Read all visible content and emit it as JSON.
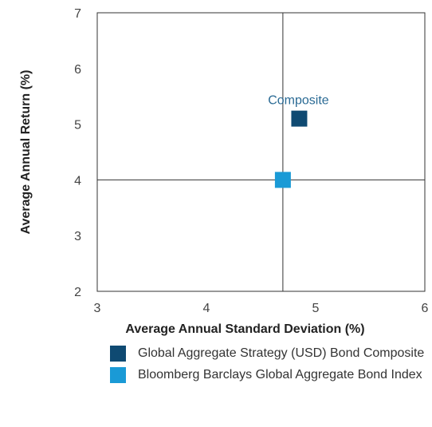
{
  "chart_data": {
    "type": "scatter",
    "xlabel": "Average Annual Standard Deviation (%)",
    "ylabel": "Average Annual Return (%)",
    "xlim": [
      3,
      6
    ],
    "ylim": [
      2,
      7
    ],
    "x_ticks": [
      "3",
      "4",
      "5",
      "6"
    ],
    "y_ticks": [
      "2",
      "3",
      "4",
      "5",
      "6",
      "7"
    ],
    "series": [
      {
        "name": "Global Aggregate Strategy (USD) Bond Composite",
        "x": 4.85,
        "y": 5.1,
        "color": "#0f4a72",
        "marker": "square"
      },
      {
        "name": "Bloomberg Barclays Global Aggregate Bond Index",
        "x": 4.7,
        "y": 4.0,
        "color": "#1a9ad6",
        "marker": "square"
      }
    ],
    "reference_lines": {
      "x": 4.7,
      "y": 4.0
    },
    "annotations": [
      {
        "text": "Composite",
        "color": "#2a6a94"
      }
    ],
    "grid": false,
    "legend_position": "bottom"
  }
}
